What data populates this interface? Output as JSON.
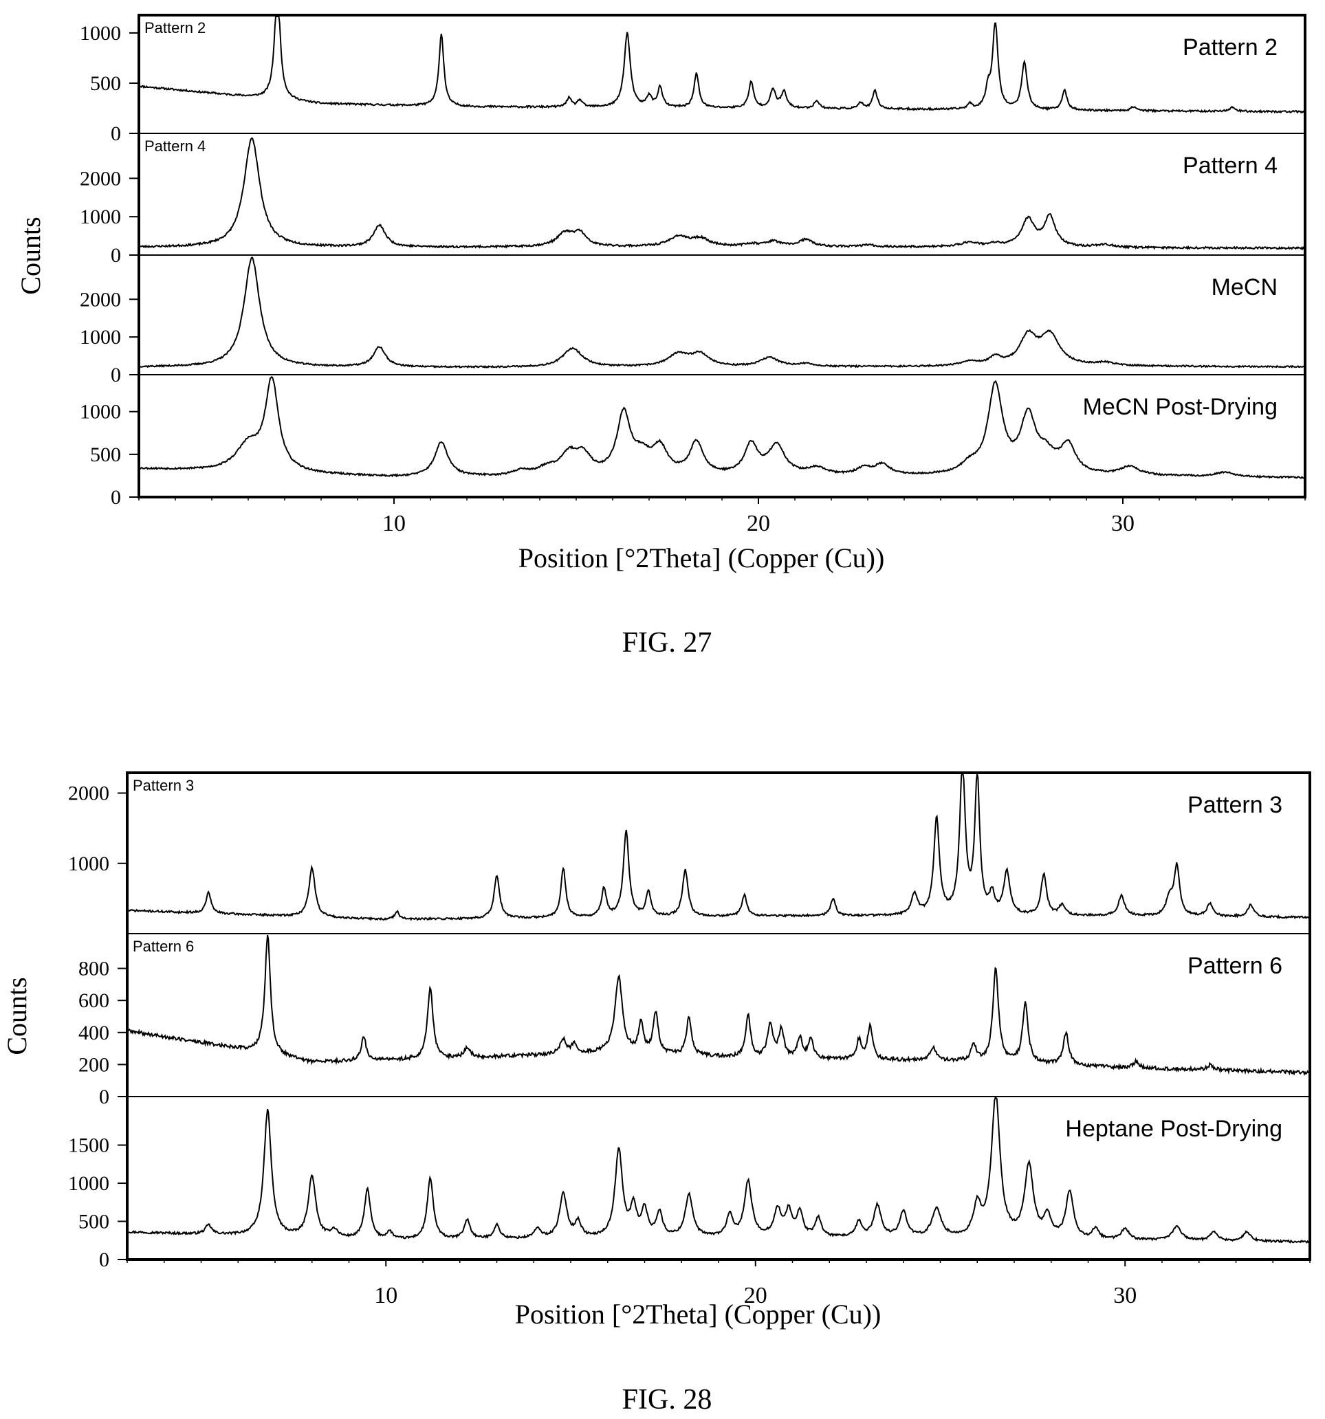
{
  "chart_data": [
    {
      "type": "line",
      "caption": "FIG. 27",
      "xlabel": "Position [°2Theta] (Copper (Cu))",
      "ylabel": "Counts",
      "xlim": [
        3,
        35
      ],
      "x_ticks": [
        10,
        20,
        30
      ],
      "panels": [
        {
          "name": "Pattern 2",
          "corner_label": "Pattern 2",
          "ylim": [
            0,
            1150
          ],
          "y_ticks": [
            0,
            500,
            1000
          ],
          "baseline": [
            [
              3,
              470
            ],
            [
              8,
              295
            ],
            [
              12,
              265
            ],
            [
              20,
              250
            ],
            [
              30,
              225
            ],
            [
              35,
              215
            ]
          ],
          "peaks": [
            [
              6.8,
              1130,
              0.09
            ],
            [
              11.3,
              720,
              0.08
            ],
            [
              14.8,
              90,
              0.08
            ],
            [
              15.1,
              70,
              0.08
            ],
            [
              16.4,
              740,
              0.1
            ],
            [
              17.0,
              110,
              0.08
            ],
            [
              17.3,
              200,
              0.08
            ],
            [
              18.3,
              340,
              0.08
            ],
            [
              19.8,
              260,
              0.08
            ],
            [
              20.4,
              180,
              0.09
            ],
            [
              20.7,
              160,
              0.09
            ],
            [
              21.6,
              80,
              0.08
            ],
            [
              22.8,
              60,
              0.08
            ],
            [
              23.2,
              180,
              0.08
            ],
            [
              25.8,
              50,
              0.08
            ],
            [
              26.3,
              180,
              0.08
            ],
            [
              26.5,
              850,
              0.09
            ],
            [
              27.3,
              470,
              0.09
            ],
            [
              28.4,
              200,
              0.08
            ],
            [
              30.3,
              40,
              0.1
            ],
            [
              33.0,
              40,
              0.1
            ]
          ],
          "noise": 9,
          "seed": 11
        },
        {
          "name": "Pattern 4",
          "corner_label": "Pattern 4",
          "ylim": [
            0,
            3100
          ],
          "y_ticks": [
            0,
            1000,
            2000
          ],
          "baseline": [
            [
              3,
              200
            ],
            [
              10,
              200
            ],
            [
              20,
              220
            ],
            [
              30,
              190
            ],
            [
              35,
              180
            ]
          ],
          "peaks": [
            [
              6.1,
              2850,
              0.26
            ],
            [
              9.6,
              560,
              0.2
            ],
            [
              14.7,
              350,
              0.28
            ],
            [
              15.1,
              320,
              0.2
            ],
            [
              17.8,
              250,
              0.3
            ],
            [
              18.4,
              200,
              0.3
            ],
            [
              19.8,
              60,
              0.2
            ],
            [
              20.4,
              130,
              0.25
            ],
            [
              21.3,
              180,
              0.22
            ],
            [
              23.0,
              50,
              0.2
            ],
            [
              25.8,
              120,
              0.3
            ],
            [
              26.5,
              70,
              0.2
            ],
            [
              27.4,
              720,
              0.22
            ],
            [
              28.0,
              780,
              0.18
            ],
            [
              29.5,
              70,
              0.3
            ]
          ],
          "noise": 25,
          "seed": 23
        },
        {
          "name": "MeCN",
          "series_label": "MeCN",
          "ylim": [
            0,
            3100
          ],
          "y_ticks": [
            0,
            1000,
            2000
          ],
          "baseline": [
            [
              3,
              200
            ],
            [
              12,
              190
            ],
            [
              20,
              200
            ],
            [
              30,
              220
            ],
            [
              35,
              210
            ]
          ],
          "peaks": [
            [
              6.1,
              2900,
              0.26
            ],
            [
              9.6,
              530,
              0.2
            ],
            [
              14.9,
              500,
              0.32
            ],
            [
              17.8,
              320,
              0.35
            ],
            [
              18.4,
              320,
              0.3
            ],
            [
              20.3,
              240,
              0.3
            ],
            [
              21.3,
              70,
              0.3
            ],
            [
              25.8,
              120,
              0.3
            ],
            [
              26.5,
              200,
              0.2
            ],
            [
              27.4,
              750,
              0.28
            ],
            [
              28.0,
              800,
              0.32
            ],
            [
              29.5,
              80,
              0.3
            ]
          ],
          "noise": 20,
          "seed": 37
        },
        {
          "name": "MeCN Post-Drying",
          "series_label": "MeCN Post-Drying",
          "ylim": [
            0,
            1400
          ],
          "y_ticks": [
            0,
            500,
            1000
          ],
          "baseline": [
            [
              3,
              330
            ],
            [
              10,
              230
            ],
            [
              20,
              240
            ],
            [
              30,
              245
            ],
            [
              35,
              225
            ]
          ],
          "peaks": [
            [
              6.0,
              300,
              0.4
            ],
            [
              6.65,
              1050,
              0.22
            ],
            [
              11.3,
              400,
              0.22
            ],
            [
              13.5,
              60,
              0.25
            ],
            [
              14.2,
              80,
              0.3
            ],
            [
              14.8,
              240,
              0.3
            ],
            [
              15.2,
              200,
              0.25
            ],
            [
              16.3,
              700,
              0.22
            ],
            [
              16.8,
              200,
              0.3
            ],
            [
              17.3,
              300,
              0.25
            ],
            [
              18.3,
              380,
              0.22
            ],
            [
              19.8,
              350,
              0.22
            ],
            [
              20.5,
              340,
              0.28
            ],
            [
              21.6,
              80,
              0.3
            ],
            [
              22.9,
              80,
              0.25
            ],
            [
              23.4,
              120,
              0.25
            ],
            [
              25.8,
              100,
              0.3
            ],
            [
              26.5,
              1030,
              0.24
            ],
            [
              27.4,
              650,
              0.25
            ],
            [
              27.9,
              200,
              0.3
            ],
            [
              28.5,
              330,
              0.25
            ],
            [
              30.2,
              100,
              0.3
            ],
            [
              32.8,
              50,
              0.3
            ]
          ],
          "noise": 10,
          "seed": 53
        }
      ]
    },
    {
      "type": "line",
      "caption": "FIG. 28",
      "xlabel": "Position [°2Theta] (Copper (Cu))",
      "ylabel": "Counts",
      "xlim": [
        3,
        35
      ],
      "x_ticks": [
        10,
        20,
        30
      ],
      "panels": [
        {
          "name": "Pattern 3",
          "corner_label": "Pattern 3",
          "ylim": [
            0,
            2250
          ],
          "y_ticks": [
            1000,
            2000
          ],
          "baseline": [
            [
              3,
              330
            ],
            [
              10,
              200
            ],
            [
              20,
              250
            ],
            [
              30,
              250
            ],
            [
              35,
              230
            ]
          ],
          "peaks": [
            [
              5.2,
              300,
              0.08
            ],
            [
              8.0,
              700,
              0.1
            ],
            [
              10.3,
              120,
              0.07
            ],
            [
              13.0,
              600,
              0.09
            ],
            [
              14.8,
              700,
              0.08
            ],
            [
              15.9,
              400,
              0.08
            ],
            [
              16.5,
              1220,
              0.09
            ],
            [
              17.1,
              350,
              0.08
            ],
            [
              18.1,
              660,
              0.09
            ],
            [
              19.7,
              300,
              0.08
            ],
            [
              22.1,
              250,
              0.08
            ],
            [
              24.3,
              300,
              0.1
            ],
            [
              24.9,
              1370,
              0.09
            ],
            [
              25.6,
              2100,
              0.09
            ],
            [
              26.0,
              1950,
              0.08
            ],
            [
              26.4,
              280,
              0.08
            ],
            [
              26.8,
              620,
              0.1
            ],
            [
              27.8,
              580,
              0.09
            ],
            [
              28.3,
              150,
              0.1
            ],
            [
              29.9,
              290,
              0.1
            ],
            [
              31.2,
              250,
              0.1
            ],
            [
              31.4,
              700,
              0.09
            ],
            [
              32.3,
              180,
              0.1
            ],
            [
              33.4,
              170,
              0.1
            ]
          ],
          "noise": 14,
          "seed": 71
        },
        {
          "name": "Pattern 6",
          "corner_label": "Pattern 6",
          "ylim": [
            0,
            1000
          ],
          "y_ticks": [
            0,
            200,
            400,
            600,
            800
          ],
          "baseline": [
            [
              3,
              410
            ],
            [
              6,
              300
            ],
            [
              8,
              215
            ],
            [
              12,
              240
            ],
            [
              16,
              275
            ],
            [
              20,
              240
            ],
            [
              26,
              220
            ],
            [
              30,
              180
            ],
            [
              35,
              150
            ]
          ],
          "peaks": [
            [
              6.8,
              740,
              0.09
            ],
            [
              9.4,
              150,
              0.08
            ],
            [
              11.2,
              440,
              0.09
            ],
            [
              12.2,
              60,
              0.1
            ],
            [
              14.8,
              90,
              0.1
            ],
            [
              15.1,
              60,
              0.08
            ],
            [
              16.3,
              470,
              0.12
            ],
            [
              16.9,
              180,
              0.08
            ],
            [
              17.3,
              260,
              0.08
            ],
            [
              18.2,
              240,
              0.08
            ],
            [
              19.8,
              260,
              0.08
            ],
            [
              20.4,
              200,
              0.09
            ],
            [
              20.7,
              180,
              0.08
            ],
            [
              21.2,
              130,
              0.08
            ],
            [
              21.5,
              120,
              0.08
            ],
            [
              22.8,
              120,
              0.08
            ],
            [
              23.1,
              210,
              0.08
            ],
            [
              24.8,
              80,
              0.1
            ],
            [
              25.9,
              100,
              0.08
            ],
            [
              26.5,
              580,
              0.09
            ],
            [
              27.3,
              370,
              0.09
            ],
            [
              28.4,
              200,
              0.09
            ],
            [
              30.3,
              40,
              0.1
            ],
            [
              32.3,
              30,
              0.1
            ]
          ],
          "noise": 11,
          "seed": 89
        },
        {
          "name": "Heptane Post-Drying",
          "series_label": "Heptane Post-Drying",
          "ylim": [
            0,
            2100
          ],
          "y_ticks": [
            0,
            500,
            1000,
            1500
          ],
          "baseline": [
            [
              3,
              360
            ],
            [
              10,
              250
            ],
            [
              20,
              290
            ],
            [
              30,
              250
            ],
            [
              35,
              230
            ]
          ],
          "peaks": [
            [
              5.2,
              120,
              0.1
            ],
            [
              6.8,
              1650,
              0.12
            ],
            [
              8.0,
              800,
              0.12
            ],
            [
              8.6,
              100,
              0.12
            ],
            [
              9.5,
              650,
              0.1
            ],
            [
              10.1,
              100,
              0.1
            ],
            [
              11.2,
              800,
              0.1
            ],
            [
              12.2,
              250,
              0.1
            ],
            [
              13.0,
              180,
              0.1
            ],
            [
              14.1,
              120,
              0.12
            ],
            [
              14.8,
              580,
              0.12
            ],
            [
              15.2,
              200,
              0.1
            ],
            [
              16.3,
              1150,
              0.12
            ],
            [
              16.7,
              380,
              0.1
            ],
            [
              17.0,
              350,
              0.1
            ],
            [
              17.4,
              320,
              0.1
            ],
            [
              18.2,
              560,
              0.12
            ],
            [
              19.3,
              280,
              0.1
            ],
            [
              19.8,
              720,
              0.12
            ],
            [
              20.6,
              350,
              0.12
            ],
            [
              20.9,
              330,
              0.1
            ],
            [
              21.2,
              320,
              0.1
            ],
            [
              21.7,
              250,
              0.1
            ],
            [
              22.8,
              200,
              0.1
            ],
            [
              23.3,
              420,
              0.12
            ],
            [
              24.0,
              340,
              0.12
            ],
            [
              24.9,
              380,
              0.15
            ],
            [
              26.0,
              400,
              0.12
            ],
            [
              26.5,
              1870,
              0.14
            ],
            [
              27.4,
              950,
              0.14
            ],
            [
              27.9,
              280,
              0.12
            ],
            [
              28.5,
              620,
              0.12
            ],
            [
              29.2,
              140,
              0.1
            ],
            [
              30.0,
              150,
              0.12
            ],
            [
              31.4,
              180,
              0.15
            ],
            [
              32.4,
              120,
              0.12
            ],
            [
              33.3,
              120,
              0.12
            ]
          ],
          "noise": 14,
          "seed": 97
        }
      ]
    }
  ]
}
